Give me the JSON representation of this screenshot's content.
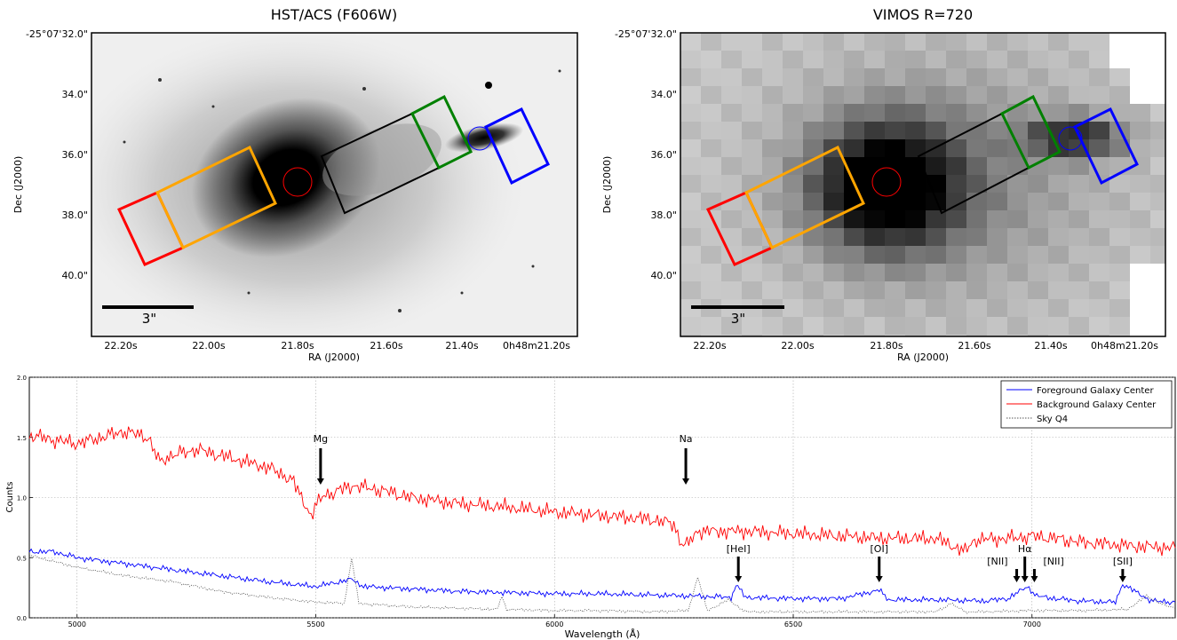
{
  "panels": {
    "left": {
      "title": "HST/ACS (F606W)",
      "xlabel": "RA (J2000)",
      "ylabel": "Dec (J2000)",
      "xticks": [
        "22.20s",
        "22.00s",
        "21.80s",
        "21.60s",
        "21.40s",
        "0h48m21.20s"
      ],
      "yticks": [
        "-25°07'32.0\"",
        "34.0\"",
        "36.0\"",
        "38.0\"",
        "40.0\""
      ],
      "scalebar_label": "3\""
    },
    "right": {
      "title": "VIMOS R=720",
      "xlabel": "RA (J2000)",
      "ylabel": "Dec (J2000)",
      "xticks": [
        "22.20s",
        "22.00s",
        "21.80s",
        "21.60s",
        "21.40s",
        "0h48m21.20s"
      ],
      "yticks": [
        "-25°07'32.0\"",
        "34.0\"",
        "36.0\"",
        "38.0\"",
        "40.0\""
      ],
      "scalebar_label": "3\""
    }
  },
  "aperture_colors": {
    "red": "#ff0000",
    "orange": "#ffa500",
    "black": "#000000",
    "green": "#008000",
    "blue": "#0000ff"
  },
  "chart_data": {
    "type": "line",
    "xlabel": "Wavelength (Å)",
    "ylabel": "Counts",
    "xlim": [
      4900,
      7300
    ],
    "ylim": [
      0,
      2.0
    ],
    "xticks": [
      5000,
      5500,
      6000,
      6500,
      7000
    ],
    "yticks": [
      0.0,
      0.5,
      1.0,
      1.5,
      2.0
    ],
    "legend_position": "top-right",
    "series": [
      {
        "name": "Foreground Galaxy Center",
        "color": "#0000ff",
        "style": "solid",
        "x": [
          4900,
          4950,
          5000,
          5100,
          5200,
          5300,
          5400,
          5500,
          5575,
          5600,
          5700,
          5800,
          5900,
          6000,
          6100,
          6200,
          6300,
          6370,
          6380,
          6400,
          6500,
          6600,
          6680,
          6700,
          6800,
          6900,
          6950,
          6990,
          7010,
          7050,
          7100,
          7175,
          7190,
          7250,
          7300
        ],
        "y": [
          0.55,
          0.55,
          0.5,
          0.45,
          0.4,
          0.35,
          0.3,
          0.26,
          0.32,
          0.26,
          0.24,
          0.22,
          0.21,
          0.2,
          0.2,
          0.19,
          0.18,
          0.17,
          0.28,
          0.17,
          0.16,
          0.16,
          0.23,
          0.15,
          0.15,
          0.14,
          0.16,
          0.26,
          0.18,
          0.16,
          0.14,
          0.13,
          0.28,
          0.14,
          0.13
        ]
      },
      {
        "name": "Background Galaxy Center",
        "color": "#ff0000",
        "style": "solid",
        "x": [
          4900,
          4950,
          5000,
          5050,
          5100,
          5150,
          5170,
          5200,
          5250,
          5300,
          5400,
          5450,
          5490,
          5510,
          5540,
          5580,
          5650,
          5700,
          5800,
          5900,
          6000,
          6100,
          6200,
          6250,
          6270,
          6300,
          6400,
          6500,
          6600,
          6700,
          6800,
          6860,
          6880,
          6950,
          7000,
          7050,
          7100,
          7200,
          7300
        ],
        "y": [
          1.52,
          1.48,
          1.45,
          1.5,
          1.55,
          1.5,
          1.3,
          1.35,
          1.4,
          1.35,
          1.25,
          1.15,
          0.85,
          1.0,
          1.05,
          1.1,
          1.05,
          1.0,
          0.95,
          0.92,
          0.88,
          0.85,
          0.82,
          0.78,
          0.58,
          0.72,
          0.72,
          0.7,
          0.68,
          0.66,
          0.66,
          0.55,
          0.65,
          0.66,
          0.68,
          0.66,
          0.63,
          0.6,
          0.58
        ]
      },
      {
        "name": "Sky Q4",
        "color": "#555555",
        "style": "dotted",
        "x": [
          4900,
          5000,
          5100,
          5200,
          5300,
          5400,
          5500,
          5560,
          5575,
          5590,
          5700,
          5800,
          5880,
          5890,
          5900,
          6000,
          6100,
          6200,
          6280,
          6300,
          6320,
          6364,
          6400,
          6500,
          6600,
          6700,
          6800,
          6830,
          6860,
          6900,
          7000,
          7100,
          7200,
          7240,
          7280,
          7300
        ],
        "y": [
          0.52,
          0.42,
          0.35,
          0.3,
          0.22,
          0.17,
          0.13,
          0.12,
          0.5,
          0.12,
          0.09,
          0.08,
          0.07,
          0.18,
          0.07,
          0.06,
          0.06,
          0.05,
          0.06,
          0.34,
          0.06,
          0.15,
          0.05,
          0.05,
          0.05,
          0.05,
          0.05,
          0.12,
          0.05,
          0.05,
          0.06,
          0.06,
          0.07,
          0.18,
          0.1,
          0.08
        ]
      }
    ],
    "annotations": [
      {
        "label": "Mg",
        "x": 5510
      },
      {
        "label": "Na",
        "x": 6275
      },
      {
        "label": "[HeI]",
        "x": 6385
      },
      {
        "label": "[OI]",
        "x": 6680
      },
      {
        "label": "[NII]",
        "x": 6968
      },
      {
        "label": "Hα",
        "x": 6985
      },
      {
        "label": "[NII]",
        "x": 7005
      },
      {
        "label": "[SII]",
        "x": 7190
      }
    ]
  }
}
